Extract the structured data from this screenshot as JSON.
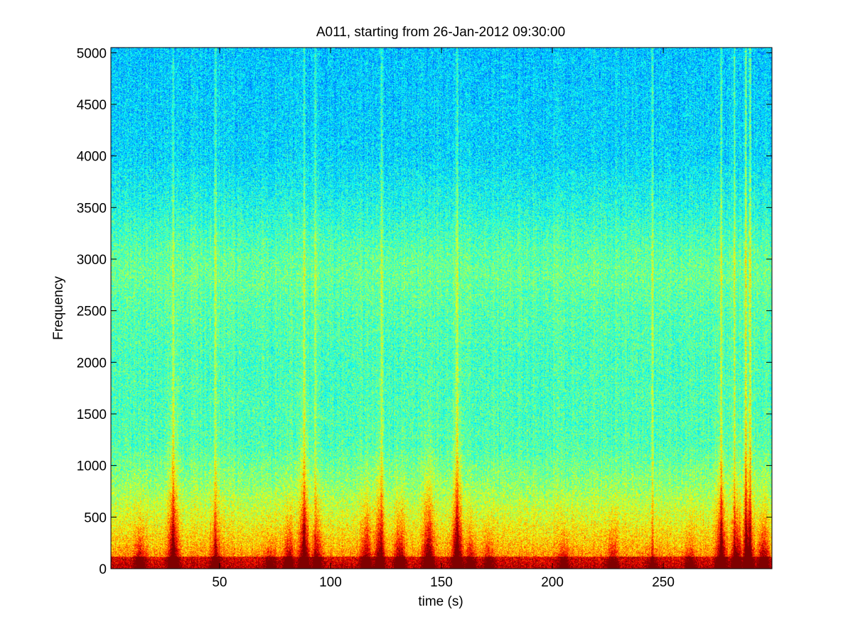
{
  "chart_data": {
    "type": "heatmap",
    "title": "A011, starting from 26-Jan-2012 09:30:00",
    "xlabel": "time (s)",
    "ylabel": "Frequency",
    "xlim": [
      1,
      299
    ],
    "ylim": [
      0,
      5050
    ],
    "xticks": [
      50,
      100,
      150,
      200,
      250
    ],
    "xtick_labels": [
      "50",
      "100",
      "150",
      "200",
      "250"
    ],
    "yticks": [
      0,
      500,
      1000,
      1500,
      2000,
      2500,
      3000,
      3500,
      4000,
      4500,
      5000
    ],
    "ytick_labels": [
      "0",
      "500",
      "1000",
      "1500",
      "2000",
      "2500",
      "3000",
      "3500",
      "4000",
      "4500",
      "5000"
    ],
    "grid": false,
    "colormap": "jet",
    "colors": {
      "low": "#1cc8d8",
      "mid": "#5ed878",
      "high": "#f0f020",
      "peak": "#e02010"
    },
    "intensity_profile": {
      "frequency": [
        0,
        250,
        500,
        800,
        1200,
        2000,
        2600,
        2850,
        3100,
        3500,
        4000,
        5050
      ],
      "level": [
        0.8,
        0.68,
        0.6,
        0.52,
        0.45,
        0.44,
        0.46,
        0.48,
        0.46,
        0.4,
        0.34,
        0.32
      ]
    },
    "transients": [
      {
        "time": 14,
        "max_frequency": 450,
        "strength": 0.7
      },
      {
        "time": 29,
        "max_frequency": 1200,
        "strength": 0.9
      },
      {
        "time": 48,
        "max_frequency": 800,
        "strength": 0.55
      },
      {
        "time": 73,
        "max_frequency": 300,
        "strength": 0.65
      },
      {
        "time": 81,
        "max_frequency": 500,
        "strength": 0.75
      },
      {
        "time": 88,
        "max_frequency": 1100,
        "strength": 0.95
      },
      {
        "time": 94,
        "max_frequency": 600,
        "strength": 0.7
      },
      {
        "time": 116,
        "max_frequency": 650,
        "strength": 0.8
      },
      {
        "time": 122,
        "max_frequency": 900,
        "strength": 0.85
      },
      {
        "time": 131,
        "max_frequency": 600,
        "strength": 0.85
      },
      {
        "time": 144,
        "max_frequency": 900,
        "strength": 1.0
      },
      {
        "time": 157,
        "max_frequency": 1100,
        "strength": 1.0
      },
      {
        "time": 163,
        "max_frequency": 400,
        "strength": 0.7
      },
      {
        "time": 171,
        "max_frequency": 350,
        "strength": 0.6
      },
      {
        "time": 205,
        "max_frequency": 300,
        "strength": 0.65
      },
      {
        "time": 227,
        "max_frequency": 450,
        "strength": 0.6
      },
      {
        "time": 245,
        "max_frequency": 200,
        "strength": 0.55
      },
      {
        "time": 262,
        "max_frequency": 300,
        "strength": 0.6
      },
      {
        "time": 276,
        "max_frequency": 900,
        "strength": 0.95
      },
      {
        "time": 283,
        "max_frequency": 700,
        "strength": 0.9
      },
      {
        "time": 288,
        "max_frequency": 1100,
        "strength": 1.0
      },
      {
        "time": 295,
        "max_frequency": 500,
        "strength": 0.85
      }
    ],
    "narrowband_lines": [
      {
        "time": 29,
        "strength": 0.55
      },
      {
        "time": 48,
        "strength": 0.6
      },
      {
        "time": 88,
        "strength": 0.5
      },
      {
        "time": 93,
        "strength": 0.5
      },
      {
        "time": 123,
        "strength": 0.55
      },
      {
        "time": 157,
        "strength": 0.7
      },
      {
        "time": 245,
        "strength": 0.5
      },
      {
        "time": 276,
        "strength": 0.65
      },
      {
        "time": 282,
        "strength": 0.7
      },
      {
        "time": 287,
        "strength": 0.85
      },
      {
        "time": 289,
        "strength": 0.8
      }
    ]
  }
}
